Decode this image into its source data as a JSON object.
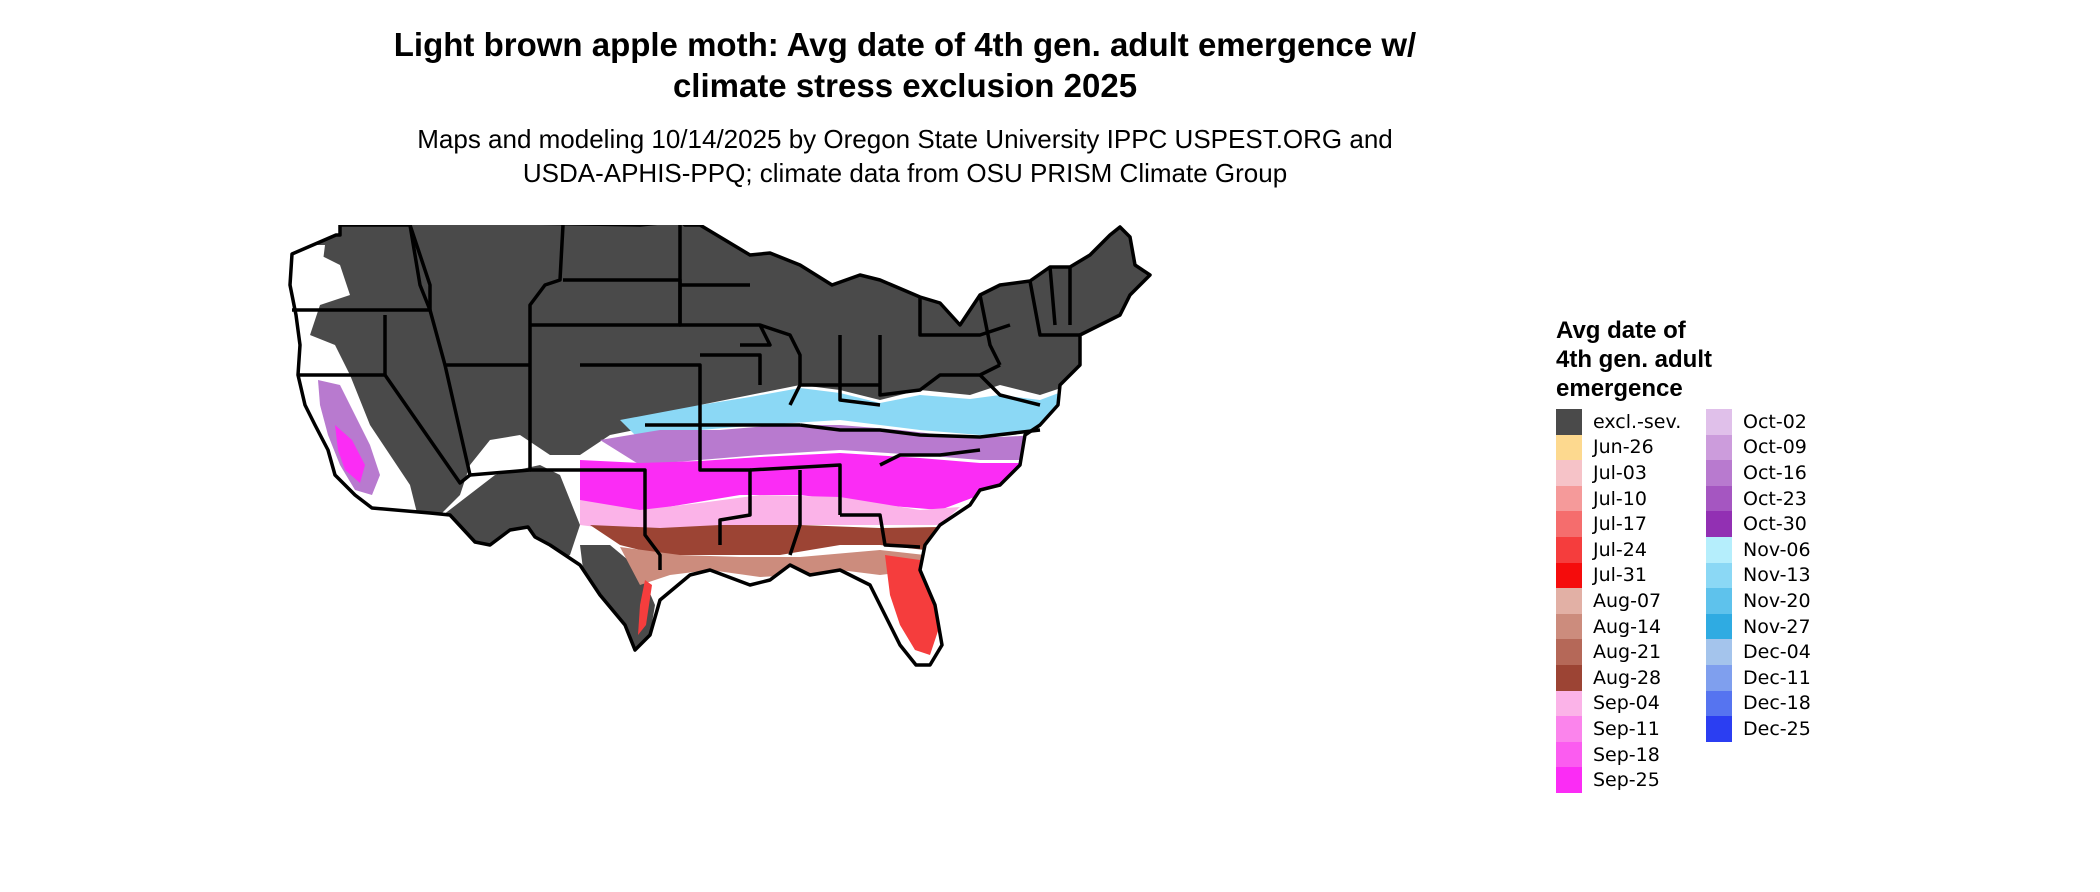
{
  "header": {
    "title_line1": "Light brown apple moth: Avg date of 4th gen. adult emergence w/",
    "title_line2": "climate stress exclusion 2025",
    "subtitle_line1": "Maps and modeling 10/14/2025 by Oregon State University IPPC USPEST.ORG and",
    "subtitle_line2": "USDA-APHIS-PPQ; climate data from OSU PRISM Climate Group"
  },
  "legend": {
    "title_line1": "Avg date of",
    "title_line2": "4th gen. adult",
    "title_line3": "emergence",
    "column1": [
      {
        "label": "excl.-sev.",
        "color": "#4a4a4a"
      },
      {
        "label": "Jun-26",
        "color": "#fdd98f"
      },
      {
        "label": "Jul-03",
        "color": "#f6c3c8"
      },
      {
        "label": "Jul-10",
        "color": "#f59a9a"
      },
      {
        "label": "Jul-17",
        "color": "#f56d6d"
      },
      {
        "label": "Jul-24",
        "color": "#f53d3d"
      },
      {
        "label": "Jul-31",
        "color": "#f50c0c"
      },
      {
        "label": "Aug-07",
        "color": "#e2b0a5"
      },
      {
        "label": "Aug-14",
        "color": "#cc8c7d"
      },
      {
        "label": "Aug-21",
        "color": "#b56858"
      },
      {
        "label": "Aug-28",
        "color": "#9c4434"
      },
      {
        "label": "Sep-04",
        "color": "#fbb3e8"
      },
      {
        "label": "Sep-11",
        "color": "#fb84ec"
      },
      {
        "label": "Sep-18",
        "color": "#fb5cf0"
      },
      {
        "label": "Sep-25",
        "color": "#fb2cf5"
      }
    ],
    "column2": [
      {
        "label": "Oct-02",
        "color": "#e0c0ea"
      },
      {
        "label": "Oct-09",
        "color": "#cc9cdc"
      },
      {
        "label": "Oct-16",
        "color": "#b87acf"
      },
      {
        "label": "Oct-23",
        "color": "#a556c1"
      },
      {
        "label": "Oct-30",
        "color": "#9230b3"
      },
      {
        "label": "Nov-06",
        "color": "#b5eefc"
      },
      {
        "label": "Nov-13",
        "color": "#8bd8f5"
      },
      {
        "label": "Nov-20",
        "color": "#5ec2ec"
      },
      {
        "label": "Nov-27",
        "color": "#2fabe2"
      },
      {
        "label": "Dec-04",
        "color": "#a4c4ec"
      },
      {
        "label": "Dec-11",
        "color": "#7f9fee"
      },
      {
        "label": "Dec-18",
        "color": "#5674f0"
      },
      {
        "label": "Dec-25",
        "color": "#2b3ef2"
      }
    ]
  }
}
